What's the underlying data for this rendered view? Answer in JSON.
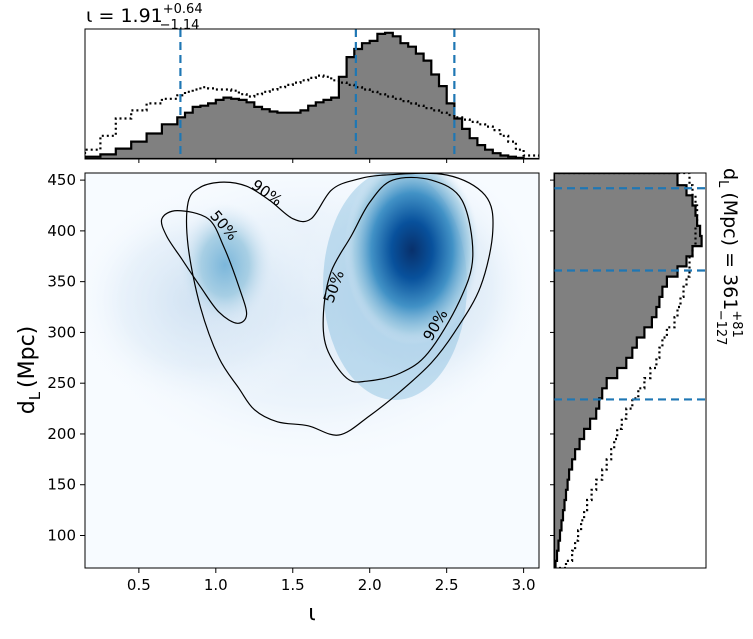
{
  "chart_data": {
    "type": "corner-plot",
    "main": {
      "type": "heatmap",
      "xlabel": "ι",
      "ylabel_main": "d",
      "ylabel_sub": "L",
      "ylabel_unit": "(Mpc)",
      "xlim": [
        0.15,
        3.1
      ],
      "ylim": [
        68,
        457
      ],
      "xticks": [
        0.5,
        1.0,
        1.5,
        2.0,
        2.5,
        3.0
      ],
      "xtick_labels": [
        "0.5",
        "1.0",
        "1.5",
        "2.0",
        "2.5",
        "3.0"
      ],
      "yticks": [
        100,
        150,
        200,
        250,
        300,
        350,
        400,
        450
      ],
      "ytick_labels": [
        "100",
        "150",
        "200",
        "250",
        "300",
        "350",
        "400",
        "450"
      ],
      "colormap": "Blues",
      "peaks": [
        {
          "x": 2.3,
          "y": 395,
          "weight": 1.0
        },
        {
          "x": 1.0,
          "y": 375,
          "weight": 0.5
        }
      ],
      "contour_labels": [
        {
          "text": "90%",
          "x": 1.33,
          "y": 437
        },
        {
          "text": "50%",
          "x": 1.05,
          "y": 405
        },
        {
          "text": "50%",
          "x": 1.77,
          "y": 345
        },
        {
          "text": "90%",
          "x": 2.43,
          "y": 307
        }
      ],
      "contours": [
        {
          "level": "90%",
          "points": [
            [
              0.82,
              428
            ],
            [
              0.9,
              443
            ],
            [
              1.05,
              448
            ],
            [
              1.2,
              444
            ],
            [
              1.35,
              430
            ],
            [
              1.5,
              412
            ],
            [
              1.62,
              412
            ],
            [
              1.75,
              440
            ],
            [
              1.9,
              450
            ],
            [
              2.1,
              455
            ],
            [
              2.5,
              455
            ],
            [
              2.75,
              435
            ],
            [
              2.8,
              400
            ],
            [
              2.72,
              345
            ],
            [
              2.55,
              300
            ],
            [
              2.4,
              270
            ],
            [
              2.2,
              242
            ],
            [
              2.0,
              218
            ],
            [
              1.8,
              199
            ],
            [
              1.6,
              208
            ],
            [
              1.4,
              212
            ],
            [
              1.25,
              224
            ],
            [
              1.15,
              245
            ],
            [
              1.02,
              275
            ],
            [
              0.9,
              325
            ],
            [
              0.82,
              385
            ]
          ]
        },
        {
          "level": "50%",
          "points": [
            [
              0.65,
              412
            ],
            [
              0.75,
              420
            ],
            [
              0.95,
              412
            ],
            [
              1.05,
              385
            ],
            [
              1.15,
              345
            ],
            [
              1.2,
              318
            ],
            [
              1.14,
              309
            ],
            [
              1.02,
              320
            ],
            [
              0.9,
              345
            ],
            [
              0.78,
              372
            ],
            [
              0.68,
              395
            ]
          ]
        },
        {
          "level": "50%",
          "points": [
            [
              1.75,
              360
            ],
            [
              1.88,
              395
            ],
            [
              2.0,
              428
            ],
            [
              2.15,
              450
            ],
            [
              2.4,
              450
            ],
            [
              2.6,
              430
            ],
            [
              2.67,
              375
            ],
            [
              2.58,
              330
            ],
            [
              2.38,
              280
            ],
            [
              2.2,
              260
            ],
            [
              1.98,
              252
            ],
            [
              1.85,
              255
            ],
            [
              1.72,
              285
            ],
            [
              1.7,
              320
            ]
          ]
        }
      ]
    },
    "top": {
      "type": "histogram",
      "title_symbol": "ι",
      "title_value": "1.91",
      "title_plus": "+0.64",
      "title_minus": "−1.14",
      "xlim": [
        0.15,
        3.1
      ],
      "quantiles": [
        0.77,
        1.91,
        2.55
      ],
      "bin_edges": [
        0.15,
        0.25,
        0.35,
        0.45,
        0.55,
        0.65,
        0.75,
        0.8,
        0.85,
        0.9,
        0.95,
        1.0,
        1.05,
        1.1,
        1.15,
        1.2,
        1.25,
        1.3,
        1.35,
        1.4,
        1.45,
        1.5,
        1.55,
        1.6,
        1.65,
        1.7,
        1.75,
        1.8,
        1.85,
        1.9,
        1.95,
        2.0,
        2.05,
        2.1,
        2.15,
        2.2,
        2.25,
        2.3,
        2.35,
        2.4,
        2.45,
        2.5,
        2.55,
        2.6,
        2.65,
        2.7,
        2.75,
        2.8,
        2.85,
        2.9,
        2.95,
        3.0,
        3.1
      ],
      "posterior": [
        2,
        4,
        9,
        15,
        22,
        30,
        36,
        40,
        45,
        46,
        48,
        51,
        53,
        52,
        51,
        49,
        45,
        43,
        41,
        40,
        40,
        40,
        42,
        46,
        49,
        51,
        53,
        71,
        88,
        95,
        100,
        102,
        108,
        109,
        106,
        100,
        97,
        91,
        85,
        73,
        63,
        48,
        35,
        26,
        18,
        12,
        8,
        5,
        3,
        2,
        1,
        0
      ],
      "prior": [
        8,
        20,
        35,
        42,
        48,
        52,
        55,
        58,
        60,
        62,
        61,
        60,
        60,
        59,
        56,
        54,
        56,
        58,
        60,
        62,
        64,
        66,
        68,
        70,
        72,
        71,
        68,
        66,
        64,
        62,
        60,
        58,
        56,
        54,
        52,
        50,
        48,
        46,
        44,
        42,
        40,
        38,
        36,
        34,
        32,
        30,
        28,
        25,
        20,
        15,
        8,
        3
      ]
    },
    "right": {
      "type": "histogram",
      "title_symbol": "d",
      "title_sub": "L",
      "title_unit": "(Mpc) =",
      "title_value": "361",
      "title_plus": "+81",
      "title_minus": "−127",
      "ylim": [
        68,
        457
      ],
      "quantiles": [
        234,
        361,
        442
      ],
      "bin_edges": [
        68,
        75,
        85,
        95,
        105,
        115,
        125,
        135,
        145,
        155,
        165,
        175,
        185,
        195,
        205,
        215,
        225,
        235,
        245,
        255,
        265,
        275,
        285,
        295,
        305,
        315,
        325,
        335,
        345,
        355,
        365,
        375,
        385,
        395,
        405,
        415,
        425,
        435,
        445,
        457
      ],
      "posterior": [
        1,
        2,
        3,
        4,
        5,
        6,
        7,
        8,
        9,
        10,
        12,
        14,
        17,
        20,
        24,
        28,
        30,
        32,
        35,
        42,
        48,
        52,
        55,
        60,
        65,
        68,
        70,
        72,
        75,
        82,
        88,
        92,
        98,
        97,
        95,
        94,
        92,
        88,
        82
      ],
      "prior": [
        8,
        12,
        14,
        16,
        18,
        20,
        22,
        25,
        28,
        32,
        35,
        38,
        40,
        42,
        45,
        48,
        52,
        56,
        60,
        64,
        68,
        70,
        72,
        75,
        80,
        82,
        84,
        86,
        88,
        90,
        90,
        92,
        94,
        94,
        95,
        95,
        94,
        92,
        90
      ]
    }
  }
}
